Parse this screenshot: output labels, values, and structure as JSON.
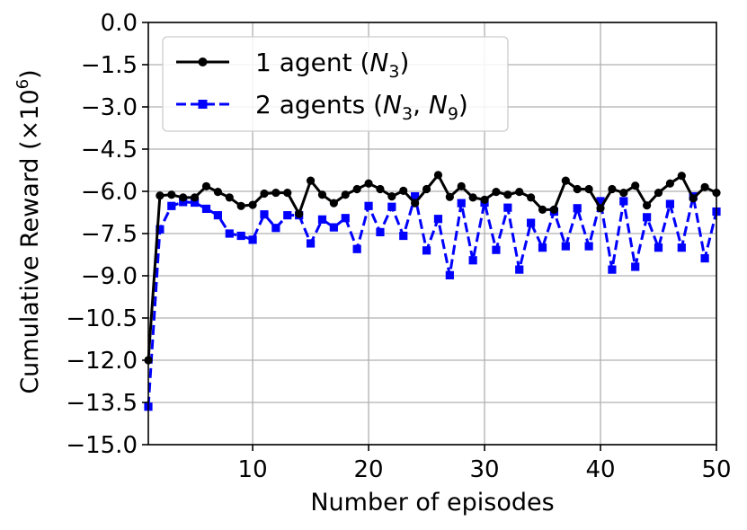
{
  "chart_data": {
    "type": "line",
    "xlabel": "Number of episodes",
    "ylabel": "Cumulative Reward (×10⁶)",
    "xlim": [
      1,
      50
    ],
    "ylim": [
      -15.0,
      0.0
    ],
    "xticks": [
      10,
      20,
      30,
      40,
      50
    ],
    "yticks": [
      0.0,
      -1.5,
      -3.0,
      -4.5,
      -6.0,
      -7.5,
      -9.0,
      -10.5,
      -12.0,
      -13.5,
      -15.0
    ],
    "xtick_labels": [
      "10",
      "20",
      "30",
      "40",
      "50"
    ],
    "ytick_labels": [
      "0.0",
      "−1.5",
      "−3.0",
      "−4.5",
      "−6.0",
      "−7.5",
      "−9.0",
      "−10.5",
      "−12.0",
      "−13.5",
      "−15.0"
    ],
    "grid": true,
    "legend_position": "top-left",
    "x": [
      1,
      2,
      3,
      4,
      5,
      6,
      7,
      8,
      9,
      10,
      11,
      12,
      13,
      14,
      15,
      16,
      17,
      18,
      19,
      20,
      21,
      22,
      23,
      24,
      25,
      26,
      27,
      28,
      29,
      30,
      31,
      32,
      33,
      34,
      35,
      36,
      37,
      38,
      39,
      40,
      41,
      42,
      43,
      44,
      45,
      46,
      47,
      48,
      49,
      50
    ],
    "series": [
      {
        "name": "1 agent (N3)",
        "legend_text": "1 agent (",
        "legend_sym": "N",
        "legend_sub": "3",
        "legend_close": ")",
        "color": "#000000",
        "marker": "circle",
        "linestyle": "solid",
        "values": [
          -12.0,
          -6.15,
          -6.12,
          -6.22,
          -6.22,
          -5.82,
          -6.02,
          -6.22,
          -6.52,
          -6.48,
          -6.08,
          -6.05,
          -6.05,
          -6.8,
          -5.62,
          -6.12,
          -6.42,
          -6.12,
          -5.92,
          -5.72,
          -5.92,
          -6.18,
          -5.98,
          -6.42,
          -5.92,
          -5.42,
          -6.2,
          -5.82,
          -6.22,
          -6.3,
          -6.02,
          -6.12,
          -6.02,
          -6.22,
          -6.65,
          -6.65,
          -5.62,
          -5.92,
          -5.92,
          -6.6,
          -5.92,
          -6.05,
          -5.8,
          -6.5,
          -6.05,
          -5.72,
          -5.45,
          -6.25,
          -5.85,
          -6.05
        ]
      },
      {
        "name": "2 agents (N3, N9)",
        "legend_text": "2 agents (",
        "legend_sym": "N",
        "legend_sub": "3",
        "legend_sep": ", ",
        "legend_sym2": "N",
        "legend_sub2": "9",
        "legend_close": ")",
        "color": "#0000ff",
        "marker": "square",
        "linestyle": "dashed",
        "values": [
          -13.65,
          -7.35,
          -6.52,
          -6.38,
          -6.4,
          -6.62,
          -6.85,
          -7.5,
          -7.58,
          -7.72,
          -6.82,
          -7.3,
          -6.85,
          -6.85,
          -7.85,
          -7.0,
          -7.28,
          -6.95,
          -8.05,
          -6.52,
          -7.45,
          -6.55,
          -7.58,
          -6.18,
          -8.1,
          -6.98,
          -8.98,
          -6.42,
          -8.45,
          -6.4,
          -8.08,
          -6.58,
          -8.78,
          -7.12,
          -8.0,
          -6.72,
          -7.95,
          -6.6,
          -7.95,
          -6.35,
          -8.78,
          -6.35,
          -8.68,
          -6.92,
          -8.0,
          -6.45,
          -8.0,
          -6.18,
          -8.38,
          -6.72
        ]
      }
    ]
  },
  "colors": {
    "series1": "#000000",
    "series2": "#0000ff",
    "grid": "#b0b0b0"
  }
}
